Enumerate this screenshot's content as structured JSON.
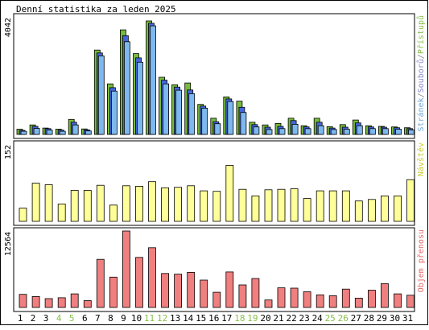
{
  "chart_data": {
    "type": "bar",
    "title": "Denní statistika za leden 2025",
    "categories": [
      "1",
      "2",
      "3",
      "4",
      "5",
      "6",
      "7",
      "8",
      "9",
      "10",
      "11",
      "12",
      "13",
      "14",
      "15",
      "16",
      "17",
      "18",
      "19",
      "20",
      "21",
      "22",
      "23",
      "24",
      "25",
      "26",
      "27",
      "28",
      "29",
      "30",
      "31"
    ],
    "weekend_days": [
      "4",
      "5",
      "11",
      "12",
      "18",
      "19",
      "25",
      "26"
    ],
    "panels": [
      {
        "name": "access",
        "y_max_label": "4042",
        "ylim": [
          0,
          4042
        ],
        "side_label_parts": [
          {
            "text": "Stránek",
            "color": "#6fa8dc"
          },
          {
            "text": "/",
            "color": "#888888"
          },
          {
            "text": "Souborů",
            "color": "#8888cc"
          },
          {
            "text": "/",
            "color": "#888888"
          },
          {
            "text": "Přístupů",
            "color": "#88c04a"
          }
        ],
        "series": [
          {
            "color": "#77bb3c",
            "values": [
              180,
              330,
              220,
              180,
              520,
              190,
              2920,
              1750,
              3620,
              2800,
              3930,
              1980,
              1720,
              1780,
              1040,
              560,
              1300,
              1150,
              420,
              330,
              380,
              560,
              300,
              560,
              270,
              340,
              500,
              300,
              280,
              260,
              230
            ]
          },
          {
            "color": "#4466dd",
            "values": [
              140,
              280,
              200,
              150,
              420,
              160,
              2820,
              1620,
              3420,
              2650,
              3850,
              1880,
              1640,
              1540,
              980,
              440,
              1230,
              940,
              340,
              250,
              280,
              480,
              260,
              420,
              220,
              250,
              400,
              260,
              250,
              230,
              200
            ]
          },
          {
            "color": "#7db8ee",
            "values": [
              110,
              210,
              150,
              110,
              330,
              120,
              2720,
              1500,
              3210,
              2500,
              3760,
              1750,
              1530,
              1410,
              910,
              370,
              1140,
              760,
              260,
              170,
              200,
              350,
              200,
              300,
              170,
              180,
              300,
              200,
              200,
              180,
              160
            ]
          }
        ]
      },
      {
        "name": "visits",
        "y_max_label": "152",
        "ylim": [
          0,
          152
        ],
        "side_label_parts": [
          {
            "text": "Návštěv",
            "color": "#cccc33"
          }
        ],
        "series": [
          {
            "color": "#ffff99",
            "values": [
              26,
              75,
              72,
              34,
              61,
              61,
              71,
              32,
              70,
              69,
              78,
              66,
              67,
              70,
              60,
              59,
              110,
              63,
              50,
              62,
              63,
              64,
              45,
              60,
              60,
              60,
              40,
              43,
              50,
              50,
              82
            ]
          }
        ]
      },
      {
        "name": "bytes",
        "y_max_label": "12564",
        "ylim": [
          0,
          12564
        ],
        "side_label_parts": [
          {
            "text": "Objem přenosu",
            "color": "#e46a6a"
          }
        ],
        "series": [
          {
            "color": "#f07f7f",
            "values": [
              2150,
              1800,
              1450,
              1600,
              2230,
              1130,
              7910,
              4980,
              12564,
              8220,
              9810,
              5580,
              5480,
              5760,
              4500,
              2500,
              5830,
              3700,
              4760,
              1230,
              3230,
              3180,
              2580,
              2080,
              1930,
              3010,
              1540,
              2850,
              3930,
              2230,
              2010
            ]
          }
        ]
      }
    ]
  }
}
